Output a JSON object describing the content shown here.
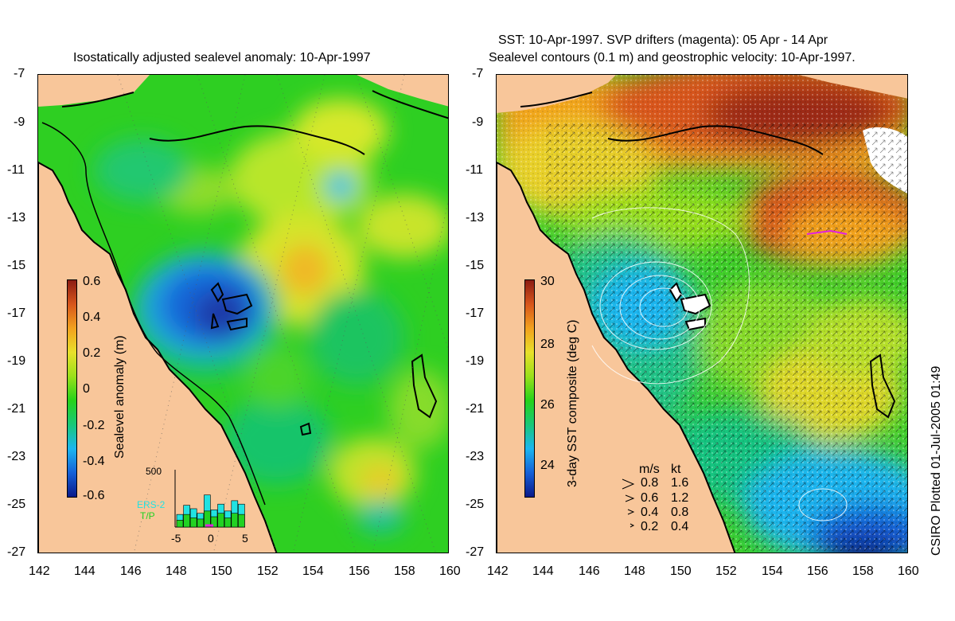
{
  "colors": {
    "land": "#f8c69a",
    "sealevel_scale": [
      "#0a1a8a",
      "#1560d8",
      "#1bb6f0",
      "#18c878",
      "#26d21a",
      "#9ae01a",
      "#e8e02a",
      "#f2a21e",
      "#d8561c",
      "#8c1c12"
    ],
    "sst_scale": [
      "#0a1a8a",
      "#1560d8",
      "#1bb6f0",
      "#18c878",
      "#26d21a",
      "#9ae01a",
      "#e8e02a",
      "#f2a21e",
      "#d8561c",
      "#8c1c12"
    ],
    "ers2": "#22e2e2",
    "tp": "#22d222",
    "drifters": "#e020e0"
  },
  "left_panel": {
    "title": "Isostatically adjusted sealevel anomaly: 10-Apr-1997",
    "x_ticks": [
      "142",
      "144",
      "146",
      "148",
      "150",
      "152",
      "154",
      "156",
      "158",
      "160"
    ],
    "y_ticks": [
      "-7",
      "-9",
      "-11",
      "-13",
      "-15",
      "-17",
      "-19",
      "-21",
      "-23",
      "-25",
      "-27"
    ],
    "colorbar": {
      "label": "Sealevel anomaly (m)",
      "ticks": [
        "0.6",
        "0.4",
        "0.2",
        "0",
        "-0.2",
        "-0.4",
        "-0.6"
      ]
    },
    "histogram": {
      "ymax_label": "500",
      "series": [
        "ERS-2",
        "T/P"
      ],
      "x_ticks": [
        "-5",
        "0",
        "5"
      ],
      "ers2_values": [
        110,
        190,
        160,
        120,
        280,
        150,
        200,
        140,
        230,
        200
      ],
      "tp_values": [
        60,
        110,
        80,
        70,
        140,
        90,
        120,
        80,
        120,
        110
      ]
    }
  },
  "right_panel": {
    "title_line1": "SST: 10-Apr-1997. SVP drifters (magenta): 05 Apr - 14 Apr",
    "title_line2": "Sealevel contours (0.1 m) and geostrophic velocity: 10-Apr-1997.",
    "x_ticks": [
      "142",
      "144",
      "146",
      "148",
      "150",
      "152",
      "154",
      "156",
      "158",
      "160"
    ],
    "y_ticks": [
      "-7",
      "-9",
      "-11",
      "-13",
      "-15",
      "-17",
      "-19",
      "-21",
      "-23",
      "-25",
      "-27"
    ],
    "colorbar": {
      "label": "3-day SST composite (deg C)",
      "ticks": [
        "30",
        "28",
        "26",
        "24"
      ]
    },
    "velocity_legend": {
      "header_ms": "m/s",
      "header_kt": "kt",
      "rows": [
        {
          "ms": "0.8",
          "kt": "1.6"
        },
        {
          "ms": "0.6",
          "kt": "1.2"
        },
        {
          "ms": "0.4",
          "kt": "0.8"
        },
        {
          "ms": "0.2",
          "kt": "0.4"
        }
      ]
    }
  },
  "credit": "CSIRO Plotted 01-Jul-2005 01:49"
}
